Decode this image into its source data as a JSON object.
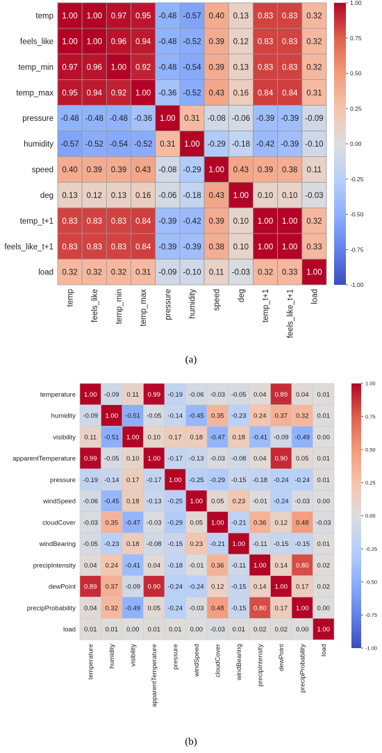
{
  "chart_data": [
    {
      "type": "heatmap",
      "caption": "(a)",
      "x_labels": [
        "temp",
        "feels_like",
        "temp_min",
        "temp_max",
        "pressure",
        "humidity",
        "speed",
        "deg",
        "temp_t+1",
        "feels_like_t+1",
        "load"
      ],
      "y_labels": [
        "temp",
        "feels_like",
        "temp_min",
        "temp_max",
        "pressure",
        "humidity",
        "speed",
        "deg",
        "temp_t+1",
        "feels_like_t+1",
        "load"
      ],
      "values": [
        [
          1.0,
          1.0,
          0.97,
          0.95,
          -0.48,
          -0.57,
          0.4,
          0.13,
          0.83,
          0.83,
          0.32
        ],
        [
          1.0,
          1.0,
          0.96,
          0.94,
          -0.48,
          -0.52,
          0.39,
          0.12,
          0.83,
          0.83,
          0.32
        ],
        [
          0.97,
          0.96,
          1.0,
          0.92,
          -0.48,
          -0.54,
          0.39,
          0.13,
          0.83,
          0.83,
          0.32
        ],
        [
          0.95,
          0.94,
          0.92,
          1.0,
          -0.36,
          -0.52,
          0.43,
          0.16,
          0.84,
          0.84,
          0.31
        ],
        [
          -0.48,
          -0.48,
          -0.48,
          -0.36,
          1.0,
          0.31,
          -0.08,
          -0.06,
          -0.39,
          -0.39,
          -0.09
        ],
        [
          -0.57,
          -0.52,
          -0.54,
          -0.52,
          0.31,
          1.0,
          -0.29,
          -0.18,
          -0.42,
          -0.39,
          -0.1
        ],
        [
          0.4,
          0.39,
          0.39,
          0.43,
          -0.08,
          -0.29,
          1.0,
          0.43,
          0.39,
          0.38,
          0.11
        ],
        [
          0.13,
          0.12,
          0.13,
          0.16,
          -0.06,
          -0.18,
          0.43,
          1.0,
          0.1,
          0.1,
          -0.03
        ],
        [
          0.83,
          0.83,
          0.83,
          0.84,
          -0.39,
          -0.42,
          0.39,
          0.1,
          1.0,
          1.0,
          0.32
        ],
        [
          0.83,
          0.83,
          0.83,
          0.84,
          -0.39,
          -0.39,
          0.38,
          0.1,
          1.0,
          1.0,
          0.33
        ],
        [
          0.32,
          0.32,
          0.32,
          0.31,
          -0.09,
          -0.1,
          0.11,
          -0.03,
          0.32,
          0.33,
          1.0
        ]
      ],
      "colorbar": {
        "range": [
          -1.0,
          1.0
        ],
        "ticks": [
          "1.00",
          "0.75",
          "0.50",
          "0.25",
          "0.00",
          "-0.25",
          "-0.50",
          "-0.75",
          "-1.00"
        ]
      },
      "colormap": "coolwarm"
    },
    {
      "type": "heatmap",
      "caption": "(b)",
      "x_labels": [
        "temperature",
        "humidity",
        "visibility",
        "apparentTemperature",
        "pressure",
        "windSpeed",
        "cloudCover",
        "windBearing",
        "precipIntensity",
        "dewPoint",
        "precipProbability",
        "load"
      ],
      "y_labels": [
        "temperature",
        "humidity",
        "visibility",
        "apparentTemperature",
        "pressure",
        "windSpeed",
        "cloudCover",
        "windBearing",
        "precipIntensity",
        "dewPoint",
        "precipProbability",
        "load"
      ],
      "values": [
        [
          1.0,
          -0.09,
          0.11,
          0.99,
          -0.19,
          -0.06,
          -0.03,
          -0.05,
          0.04,
          0.89,
          0.04,
          0.01
        ],
        [
          -0.09,
          1.0,
          -0.51,
          -0.05,
          -0.14,
          -0.45,
          0.35,
          -0.23,
          0.24,
          0.37,
          0.32,
          0.01
        ],
        [
          0.11,
          -0.51,
          1.0,
          0.1,
          0.17,
          0.18,
          -0.47,
          0.18,
          -0.41,
          -0.09,
          -0.49,
          -0.0
        ],
        [
          0.99,
          -0.05,
          0.1,
          1.0,
          -0.17,
          -0.13,
          -0.03,
          -0.08,
          0.04,
          0.9,
          0.05,
          0.01
        ],
        [
          -0.19,
          -0.14,
          0.17,
          -0.17,
          1.0,
          -0.25,
          -0.29,
          -0.15,
          -0.18,
          -0.24,
          -0.24,
          0.01
        ],
        [
          -0.06,
          -0.45,
          0.18,
          -0.13,
          -0.25,
          1.0,
          0.05,
          0.23,
          -0.01,
          -0.24,
          -0.03,
          -0.0
        ],
        [
          -0.03,
          0.35,
          -0.47,
          -0.03,
          -0.29,
          0.05,
          1.0,
          -0.21,
          0.36,
          0.12,
          0.48,
          -0.03
        ],
        [
          -0.05,
          -0.23,
          0.18,
          -0.08,
          -0.15,
          0.23,
          -0.21,
          1.0,
          -0.11,
          -0.15,
          -0.15,
          0.01
        ],
        [
          0.04,
          0.24,
          -0.41,
          0.04,
          -0.18,
          -0.01,
          0.36,
          -0.11,
          1.0,
          0.14,
          0.8,
          0.02
        ],
        [
          0.89,
          0.37,
          -0.09,
          0.9,
          -0.24,
          -0.24,
          0.12,
          -0.15,
          0.14,
          1.0,
          0.17,
          0.02
        ],
        [
          0.04,
          0.32,
          -0.49,
          0.05,
          -0.24,
          -0.03,
          0.48,
          -0.15,
          0.8,
          0.17,
          1.0,
          -0.0
        ],
        [
          0.01,
          0.01,
          -0.0,
          0.01,
          0.01,
          -0.0,
          -0.03,
          0.01,
          0.02,
          0.02,
          -0.0,
          1.0
        ]
      ],
      "colorbar": {
        "range": [
          -1.0,
          1.0
        ],
        "ticks": [
          "1.00",
          "0.75",
          "0.50",
          "0.25",
          "0.00",
          "-0.25",
          "-0.50",
          "-0.75",
          "-1.00"
        ]
      },
      "colormap": "coolwarm"
    }
  ]
}
